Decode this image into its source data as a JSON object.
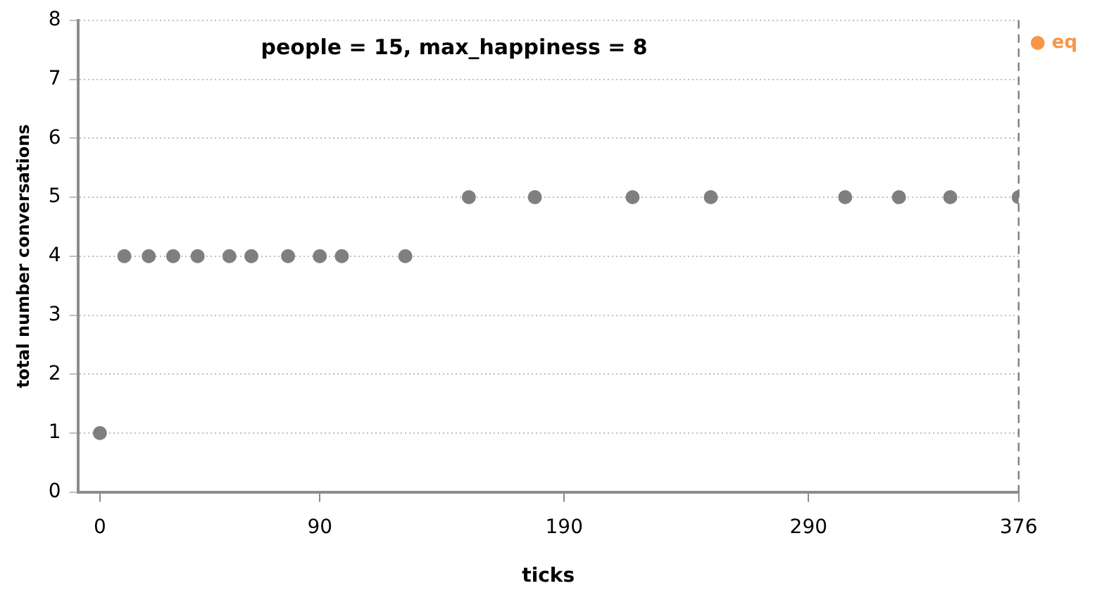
{
  "chart_data": {
    "type": "scatter",
    "title": "people = 15, max_happiness = 8",
    "xlabel": "ticks",
    "ylabel": "total number conversations",
    "xlim": [
      -9,
      376
    ],
    "xticks": [
      0,
      90,
      190,
      290,
      376
    ],
    "ylim": [
      0,
      8
    ],
    "yticks": [
      0,
      1,
      2,
      3,
      4,
      5,
      6,
      7,
      8
    ],
    "series": [
      {
        "color": "#7f7f7f",
        "x": [
          0,
          10,
          20,
          30,
          40,
          53,
          62,
          77,
          90,
          99,
          125,
          151,
          178,
          218,
          250,
          305,
          327,
          348,
          376
        ],
        "values": [
          1,
          4,
          4,
          4,
          4,
          4,
          4,
          4,
          4,
          4,
          4,
          5,
          5,
          5,
          5,
          5,
          5,
          5,
          5
        ]
      },
      {
        "name": "eq",
        "color": "#f79646"
      }
    ],
    "ref_lines": [
      {
        "axis": "x",
        "value": 376,
        "color": "#7f7f7f",
        "line_style": "dashed"
      }
    ],
    "grid": "y",
    "legend": "right",
    "marker": "circle"
  }
}
